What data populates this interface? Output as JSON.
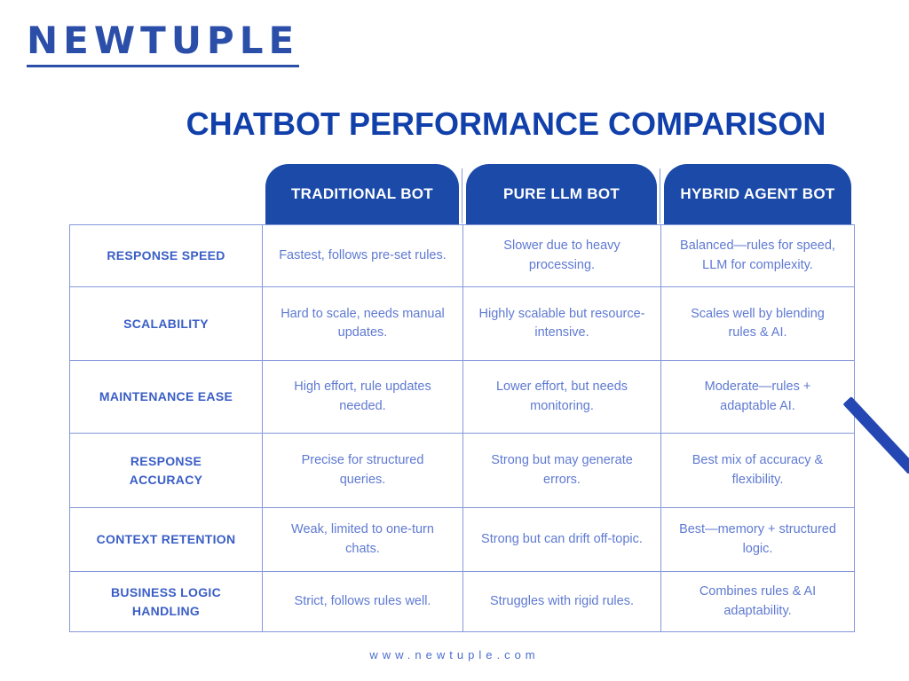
{
  "brand": {
    "logo_text": "NEWTUPLE",
    "website": "www.newtuple.com"
  },
  "title": "CHATBOT PERFORMANCE COMPARISON",
  "colors": {
    "logo_blue": "#2b4ea8",
    "title_blue": "#1140ab",
    "header_blue": "#1b4aa8",
    "label_blue": "#3a5ec6",
    "cell_blue": "#5f7ad2",
    "border_blue": "#8598da",
    "footer_blue": "#4c6ecd",
    "stripe_blue": "#2447b3"
  },
  "table": {
    "columns": [
      "TRADITIONAL BOT",
      "PURE LLM BOT",
      "HYBRID AGENT BOT"
    ],
    "rows": [
      {
        "label": "RESPONSE SPEED",
        "cells": [
          "Fastest, follows pre-set rules.",
          "Slower due to heavy processing.",
          "Balanced—rules for speed, LLM for complexity."
        ]
      },
      {
        "label": "SCALABILITY",
        "cells": [
          "Hard to scale, needs manual updates.",
          "Highly scalable but resource-intensive.",
          "Scales well by blending rules & AI."
        ]
      },
      {
        "label": "MAINTENANCE EASE",
        "cells": [
          "High effort, rule updates needed.",
          "Lower effort, but needs monitoring.",
          "Moderate—rules + adaptable AI."
        ]
      },
      {
        "label": "RESPONSE ACCURACY",
        "cells": [
          "Precise for structured queries.",
          "Strong but may generate errors.",
          "Best mix of accuracy & flexibility."
        ]
      },
      {
        "label": "CONTEXT RETENTION",
        "cells": [
          "Weak, limited to one-turn chats.",
          "Strong but can drift off-topic.",
          "Best—memory + structured logic."
        ]
      },
      {
        "label": "BUSINESS LOGIC HANDLING",
        "cells": [
          "Strict, follows rules well.",
          "Struggles with rigid rules.",
          "Combines rules & AI adaptability."
        ]
      }
    ]
  }
}
